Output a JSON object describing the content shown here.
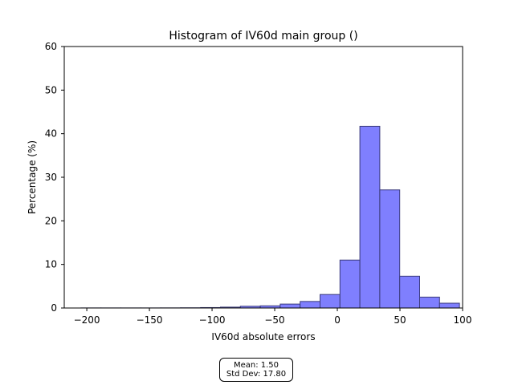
{
  "chart_data": {
    "type": "bar",
    "title": "Histogram of IV60d main group ()",
    "xlabel": "IV60d absolute errors",
    "ylabel": "Percentage (%)",
    "xlim": [
      -218,
      100
    ],
    "ylim": [
      0,
      60
    ],
    "x_ticks": [
      -200,
      -150,
      -100,
      -50,
      0,
      50,
      100
    ],
    "x_tick_labels": [
      "−200",
      "−150",
      "−100",
      "−50",
      "0",
      "50",
      "100"
    ],
    "y_ticks": [
      0,
      10,
      20,
      30,
      40,
      50,
      60
    ],
    "y_tick_labels": [
      "0",
      "10",
      "20",
      "30",
      "40",
      "50",
      "60"
    ],
    "bin_width": 15.9,
    "bins": [
      {
        "start": -204.6,
        "value": 0.02
      },
      {
        "start": -188.7,
        "value": 0.02
      },
      {
        "start": -172.8,
        "value": 0.02
      },
      {
        "start": -156.9,
        "value": 0.02
      },
      {
        "start": -141.0,
        "value": 0.03
      },
      {
        "start": -125.1,
        "value": 0.05
      },
      {
        "start": -109.2,
        "value": 0.1
      },
      {
        "start": -93.3,
        "value": 0.2
      },
      {
        "start": -77.4,
        "value": 0.4
      },
      {
        "start": -61.5,
        "value": 0.5
      },
      {
        "start": -45.6,
        "value": 0.9
      },
      {
        "start": -29.7,
        "value": 1.5
      },
      {
        "start": -13.8,
        "value": 3.1
      },
      {
        "start": 2.1,
        "value": 11.0
      },
      {
        "start": 18.0,
        "value": 41.7
      },
      {
        "start": 33.9,
        "value": 27.1
      },
      {
        "start": 49.8,
        "value": 7.3
      },
      {
        "start": 65.7,
        "value": 2.5
      },
      {
        "start": 81.6,
        "value": 1.1
      }
    ],
    "grid": false,
    "bar_fill": "#7f7ffe",
    "bar_edge": "#3a3a7a"
  },
  "stats": {
    "mean_label": "Mean: 1.50",
    "std_label": "Std Dev: 17.80"
  }
}
